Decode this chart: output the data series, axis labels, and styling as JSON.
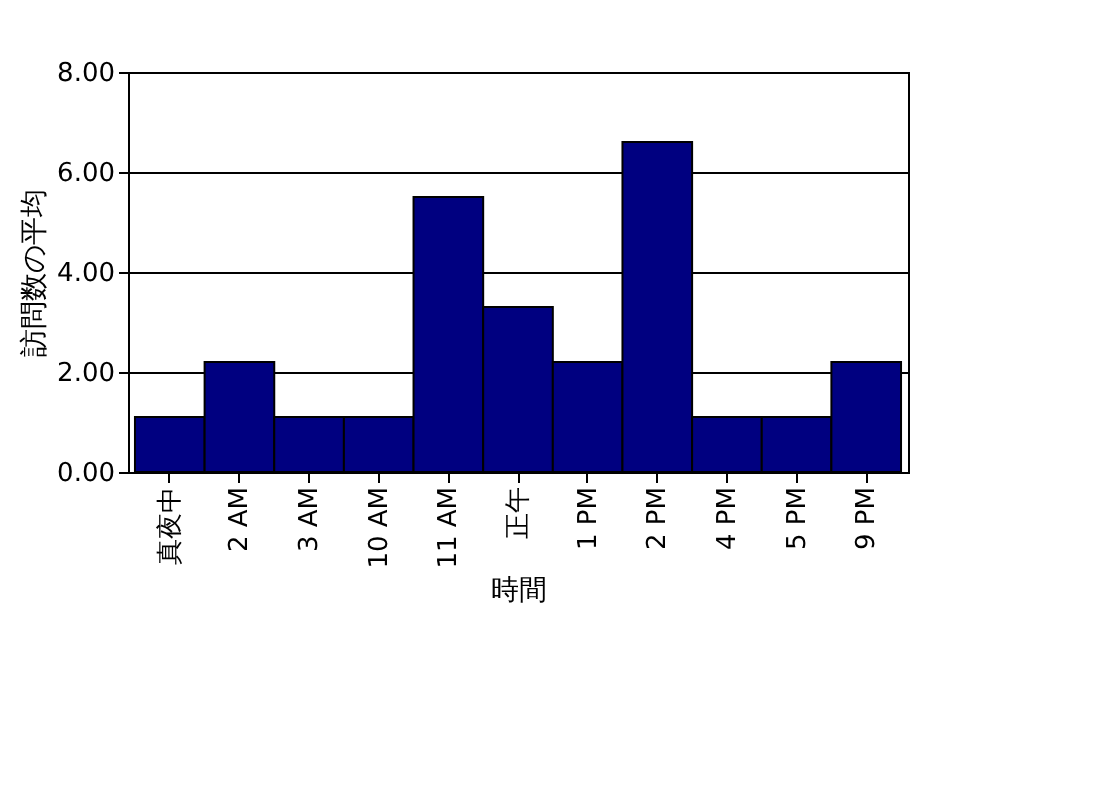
{
  "chart_data": {
    "type": "bar",
    "xlabel": "時間",
    "ylabel": "訪問数の平均",
    "categories": [
      "真夜中",
      "2 AM",
      "3 AM",
      "10 AM",
      "11 AM",
      "正午",
      "1 PM",
      "2 PM",
      "4 PM",
      "5 PM",
      "9 PM"
    ],
    "values": [
      1.1,
      2.2,
      1.1,
      1.1,
      5.5,
      3.3,
      2.2,
      6.6,
      1.1,
      1.1,
      2.2
    ],
    "color": "#000080",
    "ylim": [
      0,
      8
    ],
    "yticks": [
      {
        "value": 0,
        "label": "0.00"
      },
      {
        "value": 2,
        "label": "2.00"
      },
      {
        "value": 4,
        "label": "4.00"
      },
      {
        "value": 6,
        "label": "6.00"
      },
      {
        "value": 8,
        "label": "8.00"
      }
    ],
    "grid": "y"
  }
}
